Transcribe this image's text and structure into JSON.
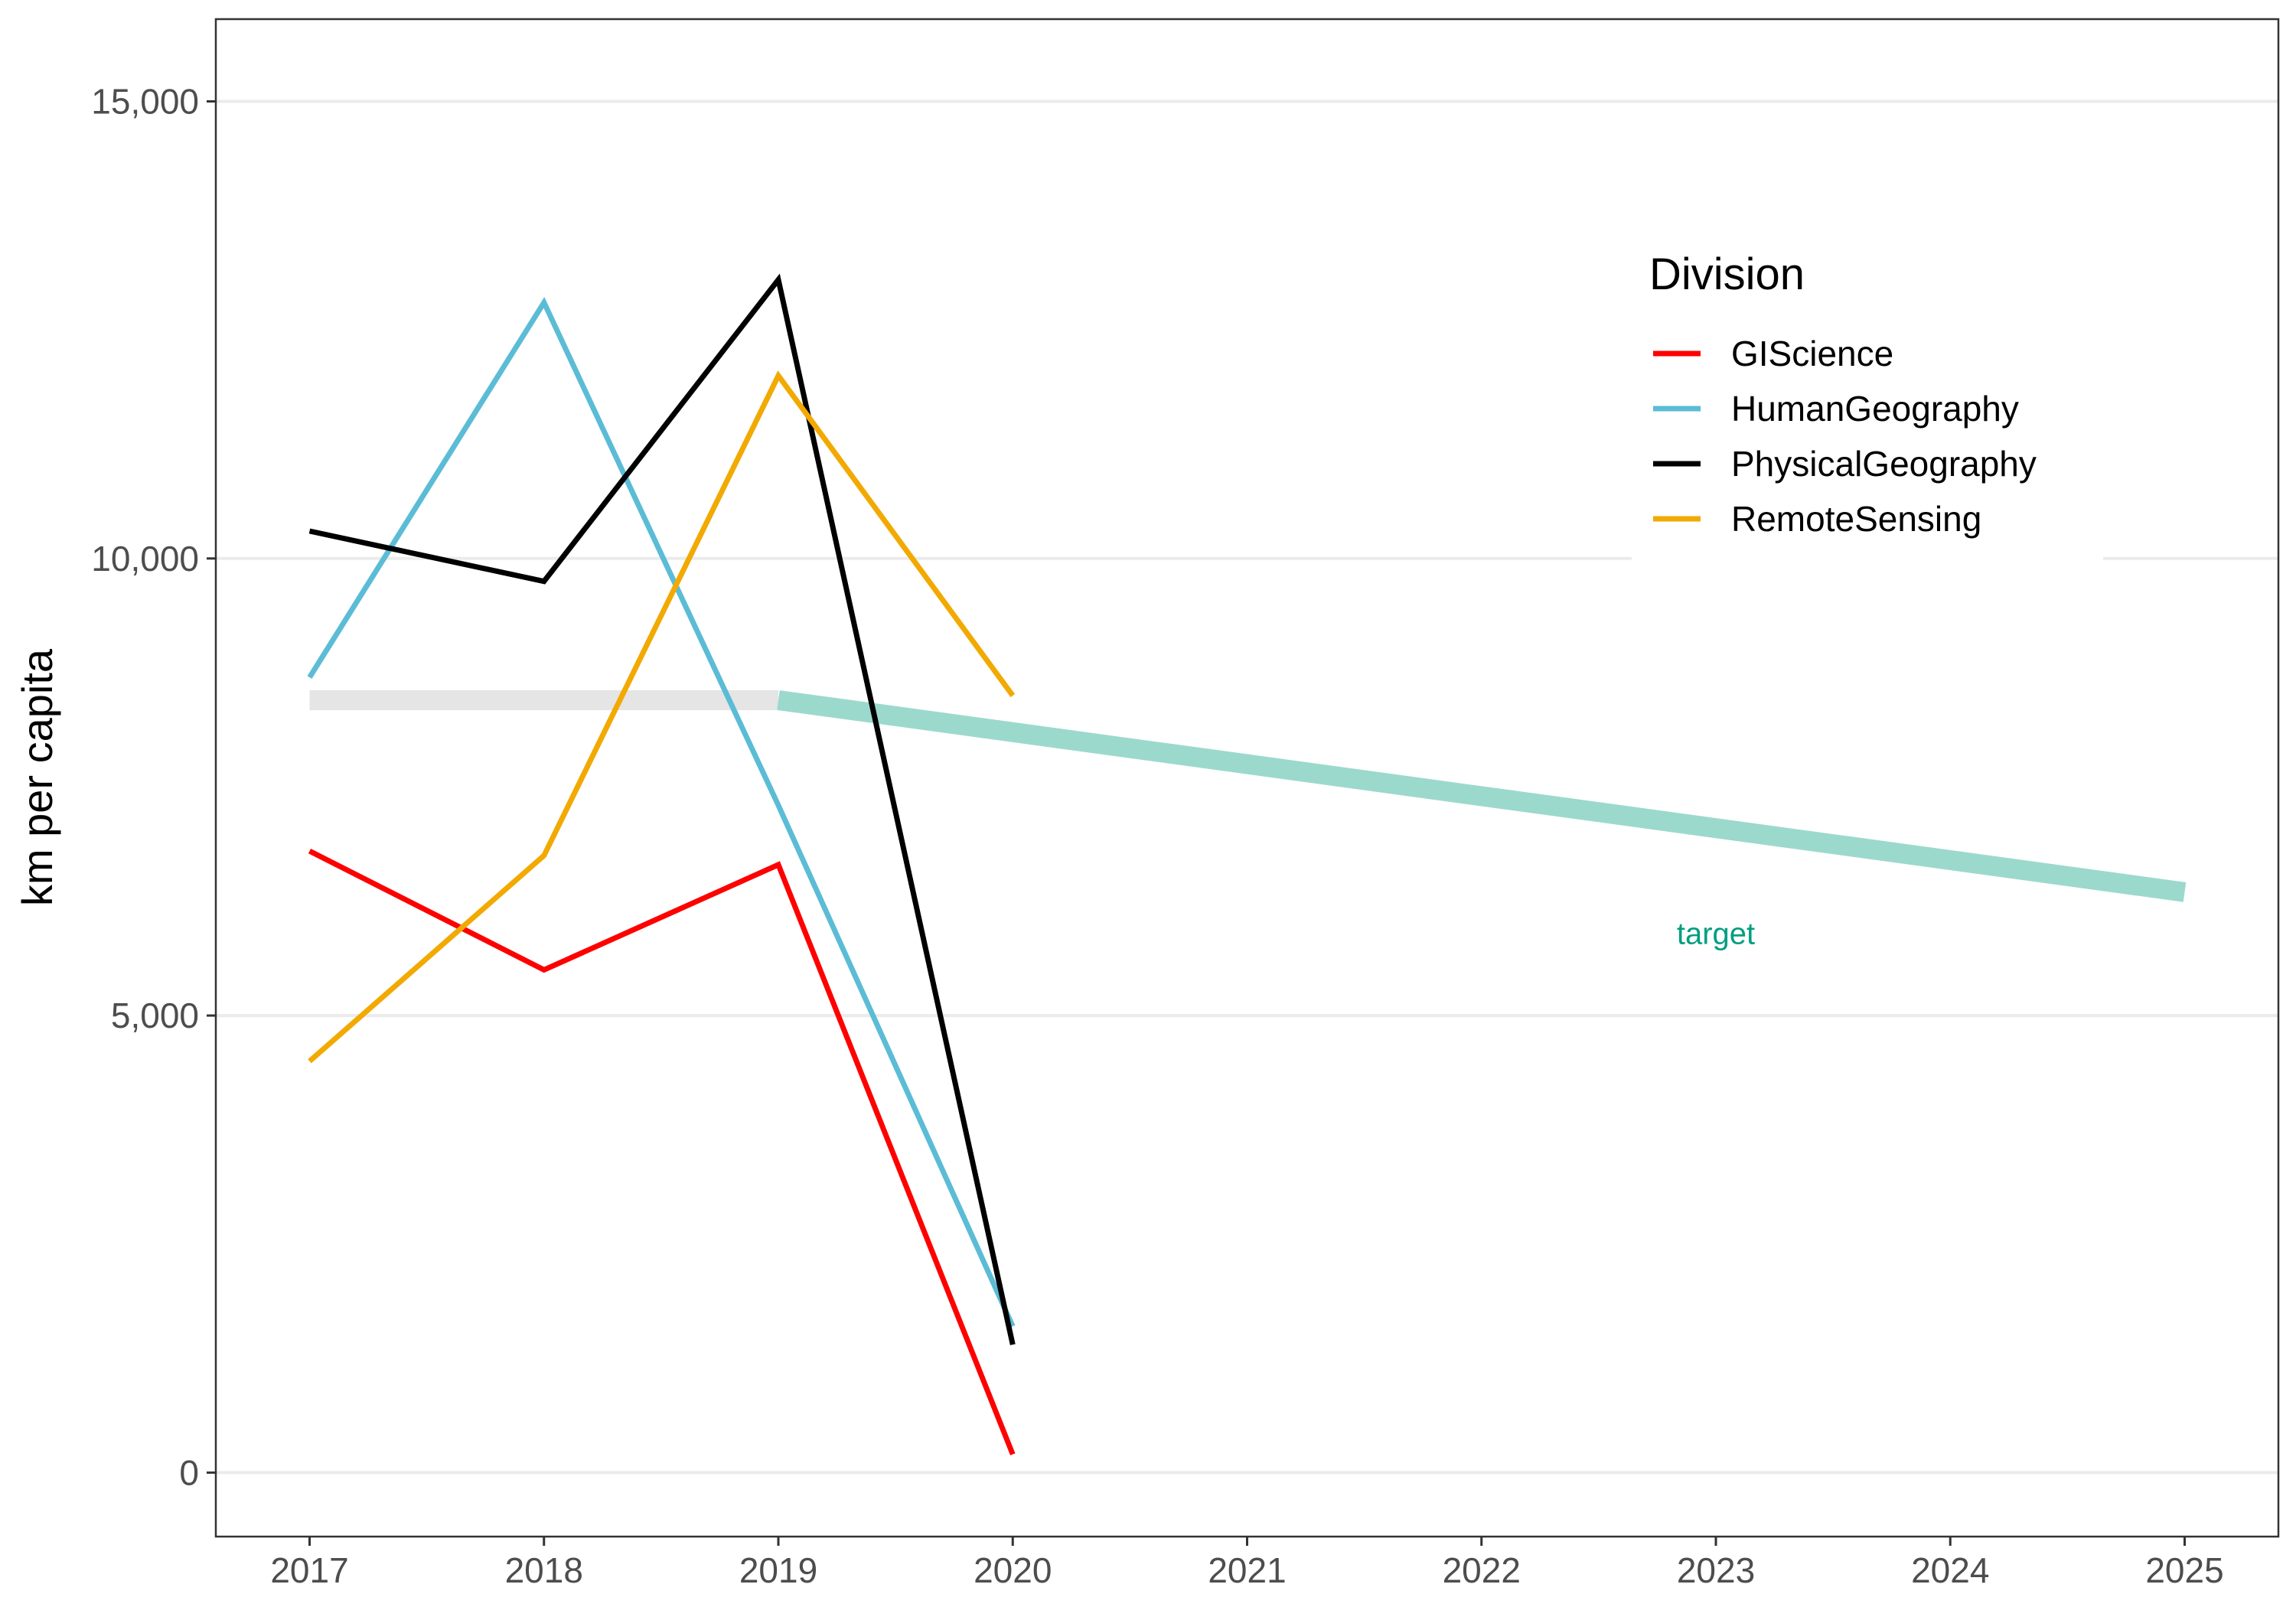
{
  "chart_data": {
    "type": "line",
    "title": "",
    "xlabel": "",
    "ylabel": "km per capita",
    "x": [
      2017,
      2018,
      2019,
      2020
    ],
    "xlim": [
      2016.6,
      2025.4
    ],
    "ylim": [
      -700,
      15900
    ],
    "x_ticks": [
      2017,
      2018,
      2019,
      2020,
      2021,
      2022,
      2023,
      2024,
      2025
    ],
    "x_tick_labels": [
      "2017",
      "2018",
      "2019",
      "2020",
      "2021",
      "2022",
      "2023",
      "2024",
      "2025"
    ],
    "y_ticks": [
      0,
      5000,
      10000,
      15000
    ],
    "y_tick_labels": [
      "0",
      "5,000",
      "10,000",
      "15,000"
    ],
    "grid": "horizontal major",
    "legend": {
      "title": "Division",
      "placement": "top-right (inside)"
    },
    "series": [
      {
        "name": "GIScience",
        "color": "#ff0000",
        "values": [
          6800,
          5500,
          6650,
          200
        ]
      },
      {
        "name": "HumanGeography",
        "color": "#5bbcd6",
        "values": [
          8700,
          12800,
          7300,
          1600
        ]
      },
      {
        "name": "PhysicalGeography",
        "color": "#000000",
        "values": [
          10300,
          9750,
          13050,
          1400
        ]
      },
      {
        "name": "RemoteSensing",
        "color": "#f2a900",
        "values": [
          4500,
          6750,
          12000,
          8500
        ]
      }
    ],
    "baseline_band": {
      "x": [
        2017,
        2019
      ],
      "y": [
        8450,
        8450
      ],
      "color": "#e5e5e5"
    },
    "target_line": {
      "x": [
        2019,
        2025
      ],
      "y": [
        8450,
        6350
      ],
      "color": "#9cd9cd",
      "label": "target",
      "label_color": "#009e80",
      "label_pos": [
        2023,
        5900
      ]
    }
  }
}
